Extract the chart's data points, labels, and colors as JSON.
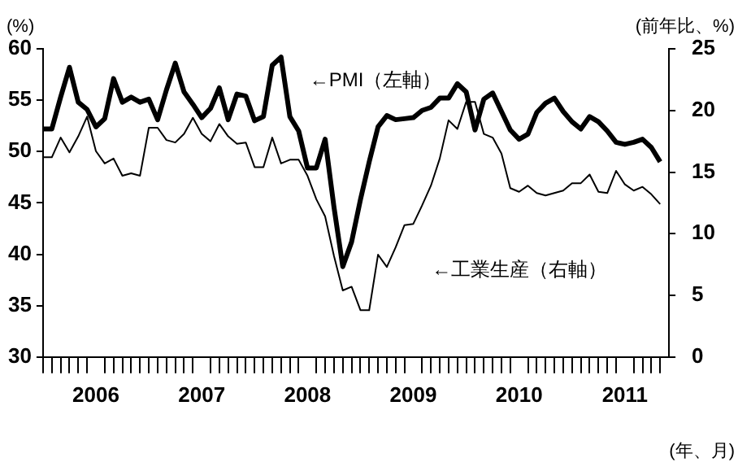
{
  "chart_data": {
    "type": "line",
    "ylabel": "(%)",
    "y2label": "(前年比、%)",
    "xlabel": "(年、月)",
    "categories": [
      null,
      null,
      null,
      null,
      null,
      null,
      "2006",
      null,
      null,
      null,
      null,
      null,
      null,
      null,
      null,
      null,
      null,
      null,
      "2007",
      null,
      null,
      null,
      null,
      null,
      null,
      null,
      null,
      null,
      null,
      null,
      "2008",
      null,
      null,
      null,
      null,
      null,
      null,
      null,
      null,
      null,
      null,
      null,
      "2009",
      null,
      null,
      null,
      null,
      null,
      null,
      null,
      null,
      null,
      null,
      null,
      "2010",
      null,
      null,
      null,
      null,
      null,
      null,
      null,
      null,
      null,
      null,
      null,
      "2011",
      null,
      null,
      null,
      null
    ],
    "series": [
      {
        "name": "←PMI（左軸）",
        "color": "#000000",
        "values": [
          52.2,
          52.2,
          55.3,
          58.2,
          54.8,
          54.1,
          52.4,
          53.2,
          57.1,
          54.8,
          55.3,
          54.8,
          55.1,
          53.1,
          56.0,
          58.6,
          55.8,
          54.6,
          53.3,
          54.2,
          56.2,
          53.1,
          55.6,
          55.4,
          53.0,
          53.4,
          58.4,
          59.2,
          53.4,
          52.0,
          48.4,
          48.4,
          51.2,
          44.6,
          38.8,
          41.2,
          45.3,
          49.0,
          52.4,
          53.5,
          53.1,
          53.2,
          53.3,
          54.0,
          54.3,
          55.2,
          55.2,
          56.6,
          55.8,
          52.1,
          55.1,
          55.7,
          53.9,
          52.1,
          51.2,
          51.7,
          53.8,
          54.7,
          55.2,
          53.9,
          52.9,
          52.2,
          53.4,
          52.9,
          52.0,
          50.9,
          50.7,
          50.9,
          51.2,
          50.4,
          49.0
        ]
      },
      {
        "name": "←工業生産（右軸）",
        "color": "#000000",
        "axis": "y2",
        "values": [
          16.2,
          16.2,
          17.8,
          16.6,
          17.9,
          19.5,
          16.7,
          15.7,
          16.1,
          14.7,
          14.9,
          14.7,
          18.6,
          18.6,
          17.6,
          17.4,
          18.1,
          19.4,
          18.1,
          17.5,
          18.9,
          17.9,
          17.3,
          17.4,
          15.4,
          15.4,
          17.8,
          15.7,
          16.0,
          16.0,
          14.7,
          12.8,
          11.4,
          8.2,
          5.4,
          5.7,
          3.8,
          3.8,
          8.3,
          7.3,
          8.9,
          10.7,
          10.8,
          12.3,
          13.9,
          16.1,
          19.2,
          18.5,
          20.7,
          20.7,
          18.1,
          17.8,
          16.5,
          13.7,
          13.4,
          13.9,
          13.3,
          13.1,
          13.3,
          13.5,
          14.1,
          14.1,
          14.8,
          13.4,
          13.3,
          15.1,
          14.0,
          13.5,
          13.8,
          13.2,
          12.4
        ]
      }
    ],
    "ylim": [
      30,
      60
    ],
    "yticks": [
      30,
      35,
      40,
      45,
      50,
      55,
      60
    ],
    "y2lim": [
      0,
      25
    ],
    "y2ticks": [
      0,
      5,
      10,
      15,
      20,
      25
    ],
    "grid": false,
    "legend": false,
    "marker": "none",
    "line_style": "solid"
  }
}
